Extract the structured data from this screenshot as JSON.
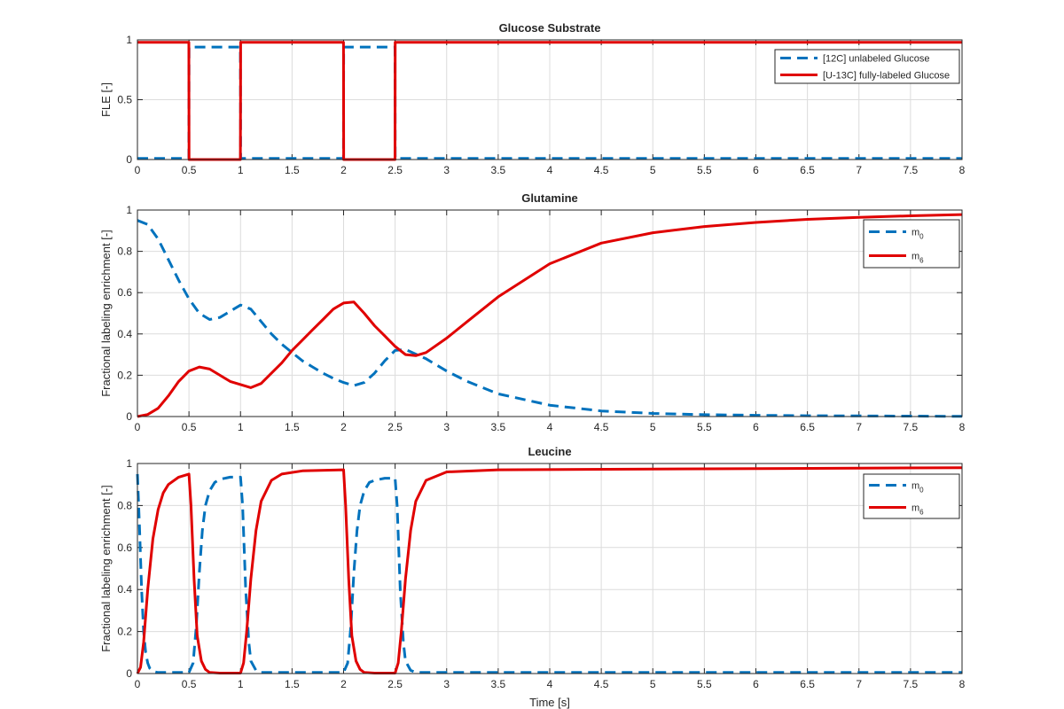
{
  "figure": {
    "xlabel": "Time [s]"
  },
  "chart_data": [
    {
      "type": "line",
      "title": "Glucose Substrate",
      "xlabel": "",
      "ylabel": "FLE [-]",
      "xlim": [
        0,
        8
      ],
      "ylim": [
        0,
        1
      ],
      "xticks": [
        0,
        0.5,
        1,
        1.5,
        2,
        2.5,
        3,
        3.5,
        4,
        4.5,
        5,
        5.5,
        6,
        6.5,
        7,
        7.5,
        8
      ],
      "xtick_labels": [
        "0",
        "0.5",
        "1",
        "1.5",
        "2",
        "2.5",
        "3",
        "3.5",
        "4",
        "4.5",
        "5",
        "5.5",
        "6",
        "6.5",
        "7",
        "7.5",
        "8"
      ],
      "yticks": [
        0,
        0.5,
        1
      ],
      "ytick_labels": [
        "0",
        "0.5",
        "1"
      ],
      "grid": true,
      "legend": {
        "placement": "top-right",
        "entries": [
          "[12C] unlabeled Glucose",
          "[U-13C] fully-labeled Glucose"
        ]
      },
      "series": [
        {
          "name": "[12C] unlabeled Glucose",
          "color": "#0072BD",
          "style": "dashed",
          "x": [
            0,
            0.499,
            0.5,
            0.501,
            0.999,
            1.0,
            1.001,
            1.999,
            2.0,
            2.001,
            2.499,
            2.5,
            2.501,
            8
          ],
          "y": [
            0.01,
            0.01,
            0.5,
            0.94,
            0.94,
            0.5,
            0.01,
            0.01,
            0.5,
            0.94,
            0.94,
            0.5,
            0.01,
            0.01
          ]
        },
        {
          "name": "[U-13C] fully-labeled Glucose",
          "color": "#E00000",
          "style": "solid",
          "x": [
            0,
            0.499,
            0.5,
            0.501,
            0.999,
            1.0,
            1.001,
            1.999,
            2.0,
            2.001,
            2.499,
            2.5,
            2.501,
            8
          ],
          "y": [
            0.98,
            0.98,
            0.5,
            0.0,
            0.0,
            0.5,
            0.98,
            0.98,
            0.5,
            0.0,
            0.0,
            0.5,
            0.98,
            0.98
          ]
        }
      ]
    },
    {
      "type": "line",
      "title": "Glutamine",
      "xlabel": "",
      "ylabel": "Fractional labeling enrichment [-]",
      "xlim": [
        0,
        8
      ],
      "ylim": [
        0,
        1
      ],
      "xticks": [
        0,
        0.5,
        1,
        1.5,
        2,
        2.5,
        3,
        3.5,
        4,
        4.5,
        5,
        5.5,
        6,
        6.5,
        7,
        7.5,
        8
      ],
      "xtick_labels": [
        "0",
        "0.5",
        "1",
        "1.5",
        "2",
        "2.5",
        "3",
        "3.5",
        "4",
        "4.5",
        "5",
        "5.5",
        "6",
        "6.5",
        "7",
        "7.5",
        "8"
      ],
      "yticks": [
        0,
        0.2,
        0.4,
        0.6,
        0.8,
        1
      ],
      "ytick_labels": [
        "0",
        "0.2",
        "0.4",
        "0.6",
        "0.8",
        "1"
      ],
      "grid": true,
      "legend": {
        "placement": "top-right",
        "entries": [
          {
            "base": "m",
            "sub": "0"
          },
          {
            "base": "m",
            "sub": "6"
          }
        ]
      },
      "series": [
        {
          "name": "m0",
          "color": "#0072BD",
          "style": "dashed",
          "x": [
            0,
            0.1,
            0.2,
            0.3,
            0.4,
            0.5,
            0.6,
            0.7,
            0.8,
            0.9,
            1.0,
            1.1,
            1.2,
            1.3,
            1.4,
            1.5,
            1.6,
            1.7,
            1.8,
            1.9,
            2.0,
            2.1,
            2.2,
            2.3,
            2.4,
            2.5,
            2.6,
            2.8,
            3.0,
            3.2,
            3.5,
            4.0,
            4.5,
            5.0,
            5.5,
            6.0,
            6.5,
            7.0,
            7.5,
            8.0
          ],
          "y": [
            0.95,
            0.93,
            0.86,
            0.76,
            0.66,
            0.57,
            0.5,
            0.47,
            0.48,
            0.51,
            0.54,
            0.52,
            0.46,
            0.4,
            0.35,
            0.31,
            0.27,
            0.24,
            0.21,
            0.185,
            0.165,
            0.15,
            0.165,
            0.21,
            0.27,
            0.32,
            0.325,
            0.28,
            0.22,
            0.17,
            0.11,
            0.055,
            0.027,
            0.015,
            0.009,
            0.006,
            0.004,
            0.003,
            0.002,
            0.001
          ]
        },
        {
          "name": "m6",
          "color": "#E00000",
          "style": "solid",
          "x": [
            0,
            0.1,
            0.2,
            0.3,
            0.4,
            0.5,
            0.6,
            0.7,
            0.8,
            0.9,
            1.0,
            1.1,
            1.2,
            1.3,
            1.4,
            1.5,
            1.6,
            1.7,
            1.8,
            1.9,
            2.0,
            2.1,
            2.2,
            2.3,
            2.4,
            2.5,
            2.6,
            2.7,
            2.8,
            3.0,
            3.2,
            3.5,
            4.0,
            4.5,
            5.0,
            5.5,
            6.0,
            6.5,
            7.0,
            7.5,
            8.0
          ],
          "y": [
            0.0,
            0.01,
            0.04,
            0.1,
            0.17,
            0.22,
            0.24,
            0.23,
            0.2,
            0.17,
            0.155,
            0.14,
            0.16,
            0.21,
            0.26,
            0.32,
            0.37,
            0.42,
            0.47,
            0.52,
            0.55,
            0.555,
            0.5,
            0.44,
            0.39,
            0.34,
            0.3,
            0.295,
            0.31,
            0.38,
            0.46,
            0.58,
            0.74,
            0.84,
            0.89,
            0.92,
            0.94,
            0.955,
            0.965,
            0.972,
            0.978
          ]
        }
      ]
    },
    {
      "type": "line",
      "title": "Leucine",
      "xlabel": "Time [s]",
      "ylabel": "Fractional labeling enrichment [-]",
      "xlim": [
        0,
        8
      ],
      "ylim": [
        0,
        1
      ],
      "xticks": [
        0,
        0.5,
        1,
        1.5,
        2,
        2.5,
        3,
        3.5,
        4,
        4.5,
        5,
        5.5,
        6,
        6.5,
        7,
        7.5,
        8
      ],
      "xtick_labels": [
        "0",
        "0.5",
        "1",
        "1.5",
        "2",
        "2.5",
        "3",
        "3.5",
        "4",
        "4.5",
        "5",
        "5.5",
        "6",
        "6.5",
        "7",
        "7.5",
        "8"
      ],
      "yticks": [
        0,
        0.2,
        0.4,
        0.6,
        0.8,
        1
      ],
      "ytick_labels": [
        "0",
        "0.2",
        "0.4",
        "0.6",
        "0.8",
        "1"
      ],
      "grid": true,
      "legend": {
        "placement": "top-right",
        "entries": [
          {
            "base": "m",
            "sub": "0"
          },
          {
            "base": "m",
            "sub": "6"
          }
        ]
      },
      "series": [
        {
          "name": "m0",
          "color": "#0072BD",
          "style": "dashed",
          "x": [
            0,
            0.02,
            0.04,
            0.06,
            0.08,
            0.1,
            0.12,
            0.15,
            0.2,
            0.5,
            0.54,
            0.57,
            0.6,
            0.63,
            0.66,
            0.7,
            0.75,
            0.8,
            0.9,
            1.0,
            1.02,
            1.05,
            1.08,
            1.1,
            1.15,
            1.2,
            1.3,
            2.0,
            2.04,
            2.07,
            2.1,
            2.13,
            2.16,
            2.2,
            2.25,
            2.3,
            2.4,
            2.5,
            2.52,
            2.55,
            2.58,
            2.6,
            2.65,
            2.7,
            2.8,
            8.0
          ],
          "y": [
            0.95,
            0.7,
            0.4,
            0.2,
            0.1,
            0.05,
            0.025,
            0.01,
            0.005,
            0.005,
            0.05,
            0.22,
            0.48,
            0.68,
            0.8,
            0.87,
            0.91,
            0.925,
            0.935,
            0.935,
            0.8,
            0.4,
            0.15,
            0.06,
            0.015,
            0.005,
            0.005,
            0.005,
            0.05,
            0.22,
            0.48,
            0.68,
            0.8,
            0.87,
            0.91,
            0.92,
            0.93,
            0.93,
            0.8,
            0.4,
            0.15,
            0.06,
            0.015,
            0.005,
            0.005,
            0.005
          ]
        },
        {
          "name": "m6",
          "color": "#E00000",
          "style": "solid",
          "x": [
            0,
            0.03,
            0.06,
            0.1,
            0.15,
            0.2,
            0.25,
            0.3,
            0.4,
            0.5,
            0.52,
            0.55,
            0.58,
            0.62,
            0.66,
            0.7,
            0.8,
            1.0,
            1.03,
            1.06,
            1.1,
            1.15,
            1.2,
            1.3,
            1.4,
            1.6,
            2.0,
            2.02,
            2.05,
            2.08,
            2.12,
            2.16,
            2.2,
            2.3,
            2.5,
            2.53,
            2.56,
            2.6,
            2.65,
            2.7,
            2.8,
            3.0,
            3.5,
            8.0
          ],
          "y": [
            0.0,
            0.03,
            0.15,
            0.4,
            0.64,
            0.78,
            0.86,
            0.9,
            0.935,
            0.95,
            0.8,
            0.45,
            0.18,
            0.06,
            0.02,
            0.005,
            0.002,
            0.002,
            0.05,
            0.2,
            0.45,
            0.68,
            0.82,
            0.92,
            0.95,
            0.965,
            0.97,
            0.8,
            0.45,
            0.18,
            0.06,
            0.02,
            0.005,
            0.002,
            0.002,
            0.05,
            0.2,
            0.45,
            0.68,
            0.82,
            0.92,
            0.96,
            0.97,
            0.98
          ]
        }
      ]
    }
  ]
}
